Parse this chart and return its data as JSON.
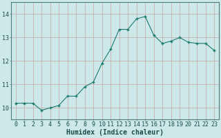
{
  "x": [
    0,
    1,
    2,
    3,
    4,
    5,
    6,
    7,
    8,
    9,
    10,
    11,
    12,
    13,
    14,
    15,
    16,
    17,
    18,
    19,
    20,
    21,
    22,
    23
  ],
  "y": [
    10.2,
    10.2,
    10.2,
    9.9,
    10.0,
    10.1,
    10.5,
    10.5,
    10.9,
    11.1,
    11.9,
    12.5,
    13.35,
    13.35,
    13.8,
    13.9,
    13.1,
    12.75,
    12.85,
    13.0,
    12.8,
    12.75,
    12.75,
    12.45
  ],
  "line_color": "#1a7a6e",
  "marker_color": "#1a7a6e",
  "bg_color": "#cde8e8",
  "grid_color_major": "#c8b0b0",
  "xlabel": "Humidex (Indice chaleur)",
  "ylim": [
    9.5,
    14.5
  ],
  "xlim": [
    -0.5,
    23.5
  ],
  "yticks": [
    10,
    11,
    12,
    13,
    14
  ],
  "xticks": [
    0,
    1,
    2,
    3,
    4,
    5,
    6,
    7,
    8,
    9,
    10,
    11,
    12,
    13,
    14,
    15,
    16,
    17,
    18,
    19,
    20,
    21,
    22,
    23
  ],
  "font_color": "#1a4a4a",
  "label_fontsize": 7,
  "tick_fontsize": 6,
  "spine_color": "#4a7a7a"
}
